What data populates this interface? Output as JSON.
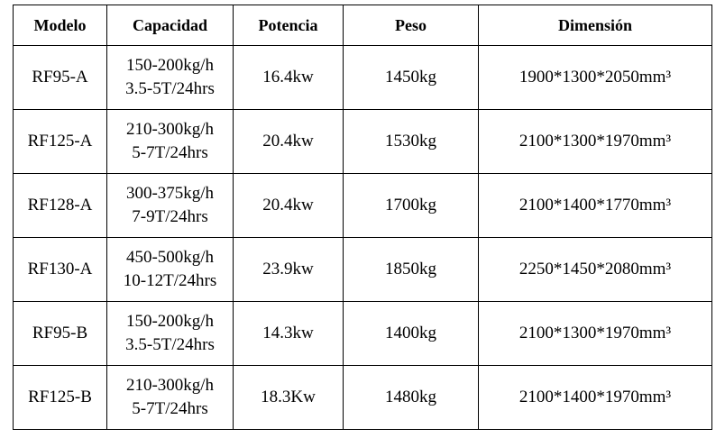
{
  "table": {
    "header": [
      "Modelo",
      "Capacidad",
      "Potencia",
      "Peso",
      "Dimensión"
    ],
    "rows": [
      [
        "RF95-A",
        [
          "150-200kg/h",
          "3.5-5T/24hrs"
        ],
        "16.4kw",
        "1450kg",
        "1900*1300*2050mm³"
      ],
      [
        "RF125-A",
        [
          "210-300kg/h",
          "5-7T/24hrs"
        ],
        "20.4kw",
        "1530kg",
        "2100*1300*1970mm³"
      ],
      [
        "RF128-A",
        [
          "300-375kg/h",
          "7-9T/24hrs"
        ],
        "20.4kw",
        "1700kg",
        "2100*1400*1770mm³"
      ],
      [
        "RF130-A",
        [
          "450-500kg/h",
          "10-12T/24hrs"
        ],
        "23.9kw",
        "1850kg",
        "2250*1450*2080mm³"
      ],
      [
        "RF95-B",
        [
          "150-200kg/h",
          "3.5-5T/24hrs"
        ],
        "14.3kw",
        "1400kg",
        "2100*1300*1970mm³"
      ],
      [
        "RF125-B",
        [
          "210-300kg/h",
          "5-7T/24hrs"
        ],
        "18.3Kw",
        "1480kg",
        "2100*1400*1970mm³"
      ]
    ]
  }
}
